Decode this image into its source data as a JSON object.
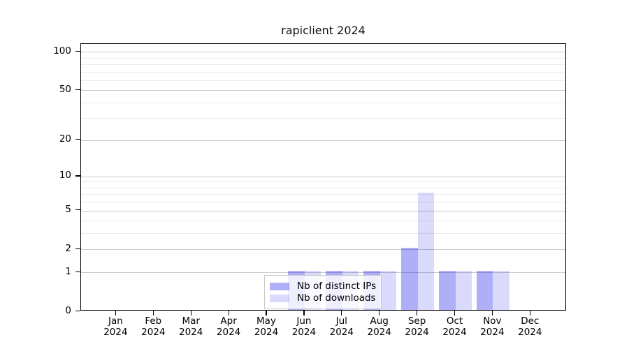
{
  "title": "rapiclient 2024",
  "chart_data": {
    "type": "bar",
    "title": "rapiclient 2024",
    "categories": [
      "Jan 2024",
      "Feb 2024",
      "Mar 2024",
      "Apr 2024",
      "May 2024",
      "Jun 2024",
      "Jul 2024",
      "Aug 2024",
      "Sep 2024",
      "Oct 2024",
      "Nov 2024",
      "Dec 2024"
    ],
    "series": [
      {
        "name": "Nb of distinct IPs",
        "color": "rgba(25,25,235,0.35)",
        "values": [
          0,
          0,
          0,
          0,
          0,
          1,
          1,
          1,
          2,
          1,
          1,
          0
        ]
      },
      {
        "name": "Nb of downloads",
        "color": "rgba(25,25,235,0.16)",
        "values": [
          0,
          0,
          0,
          0,
          0,
          1,
          1,
          1,
          7,
          1,
          1,
          0
        ]
      }
    ],
    "y_scale": "log1p",
    "y_ticks": [
      0,
      1,
      2,
      5,
      10,
      20,
      50,
      100
    ],
    "y_minor_gridlines": [
      3,
      4,
      6,
      7,
      8,
      9,
      30,
      40,
      60,
      70,
      80,
      90
    ],
    "ylim": [
      0,
      115
    ],
    "grid": true,
    "legend_position": "bottom-center",
    "colors": {
      "bar_dark_on_white": "#aaaaf9",
      "bar_light_on_white": "#dadafc",
      "major_grid": "#c9c9c9",
      "minor_grid": "#ececec",
      "axis": "#000000",
      "text": "#000000",
      "legend_border": "#c9c9c9"
    }
  }
}
